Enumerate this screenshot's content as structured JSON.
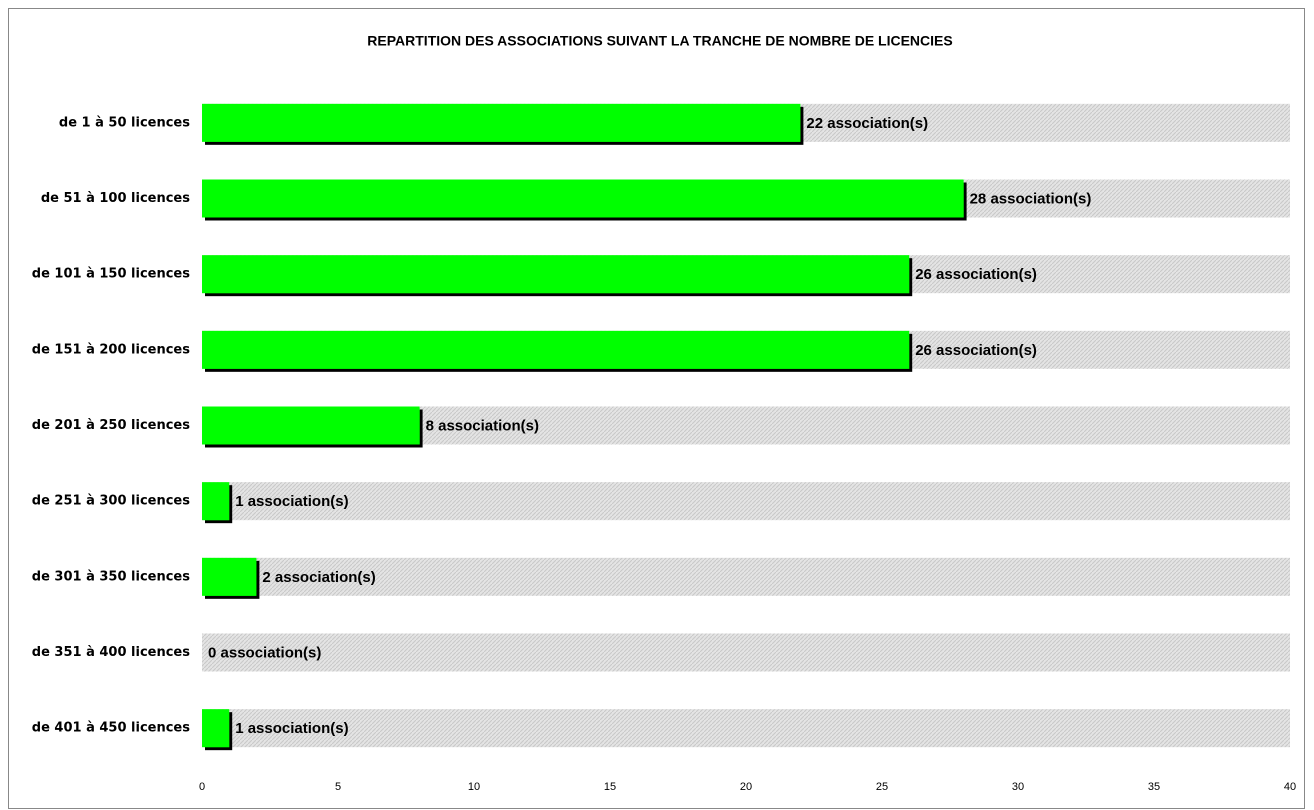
{
  "chart_data": {
    "type": "bar",
    "orientation": "horizontal",
    "title": "REPARTITION DES ASSOCIATIONS SUIVANT LA TRANCHE DE NOMBRE DE LICENCIES",
    "categories": [
      "de 1 à 50 licences",
      "de 51 à 100 licences",
      "de 101 à 150 licences",
      "de 151 à 200 licences",
      "de 201 à 250 licences",
      "de 251 à 300 licences",
      "de 301 à 350 licences",
      "de 351 à 400 licences",
      "de 401 à 450 licences"
    ],
    "values": [
      22,
      28,
      26,
      26,
      8,
      1,
      2,
      0,
      1
    ],
    "value_labels": [
      "22 association(s)",
      "28 association(s)",
      "26 association(s)",
      "26 association(s)",
      "8 association(s)",
      "1 association(s)",
      "2 association(s)",
      "0 association(s)",
      "1 association(s)"
    ],
    "color": "#00ff00",
    "xlim": [
      0,
      40
    ],
    "xticks": [
      0,
      5,
      10,
      15,
      20,
      25,
      30,
      35,
      40
    ]
  }
}
